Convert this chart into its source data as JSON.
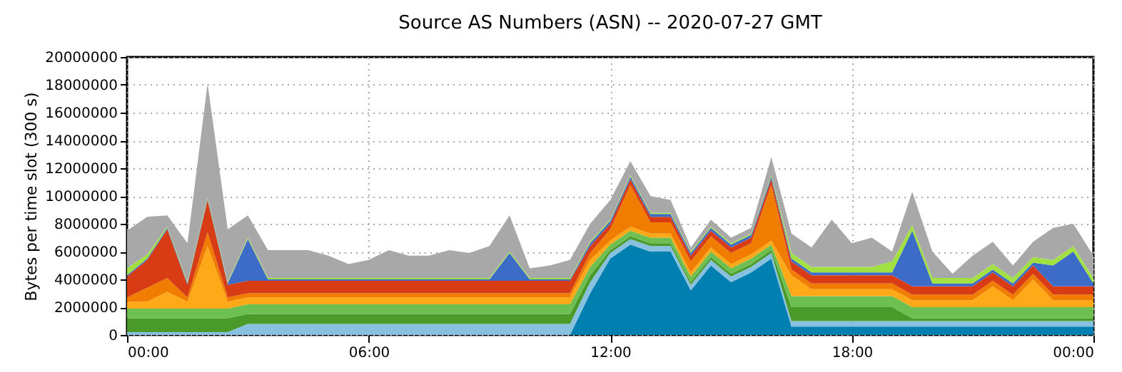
{
  "chart_data": {
    "type": "area",
    "stacked": true,
    "title": "Source AS Numbers (ASN) -- 2020-07-27 GMT",
    "ylabel": "Bytes per time slot (300 s)",
    "x": [
      0,
      0.5,
      1,
      1.5,
      2,
      2.5,
      3,
      3.5,
      4,
      4.5,
      5,
      5.5,
      6,
      6.5,
      7,
      7.5,
      8,
      8.5,
      9,
      9.5,
      10,
      10.5,
      11,
      11.5,
      12,
      12.5,
      13,
      13.5,
      14,
      14.5,
      15,
      15.5,
      16,
      16.5,
      17,
      17.5,
      18,
      18.5,
      19,
      19.5,
      20,
      20.5,
      21,
      21.5,
      22,
      22.5,
      23,
      23.5,
      24
    ],
    "xlim": [
      0,
      24
    ],
    "xticks": [
      {
        "value": 0,
        "label": "00:00"
      },
      {
        "value": 6,
        "label": "06:00"
      },
      {
        "value": 12,
        "label": "12:00"
      },
      {
        "value": 18,
        "label": "18:00"
      },
      {
        "value": 24,
        "label": "00:00"
      }
    ],
    "ylim": [
      0,
      20000000
    ],
    "yticks": [
      0,
      2000000,
      4000000,
      6000000,
      8000000,
      10000000,
      12000000,
      14000000,
      16000000,
      18000000,
      20000000
    ],
    "grid": true,
    "series": [
      {
        "color": "#0080b0",
        "values": [
          0,
          0,
          0,
          0,
          0,
          0,
          0,
          0,
          0,
          0,
          0,
          0,
          0,
          0,
          0,
          0,
          0,
          0,
          0,
          0,
          0,
          0,
          0,
          3000000,
          5500000,
          6500000,
          6000000,
          6000000,
          3200000,
          5000000,
          3800000,
          4500000,
          5500000,
          600000,
          600000,
          600000,
          600000,
          600000,
          600000,
          600000,
          600000,
          600000,
          600000,
          600000,
          600000,
          600000,
          600000,
          600000,
          600000
        ]
      },
      {
        "color": "#88c0e0",
        "values": [
          200000,
          200000,
          200000,
          200000,
          200000,
          200000,
          800000,
          800000,
          800000,
          800000,
          800000,
          800000,
          800000,
          800000,
          800000,
          800000,
          800000,
          800000,
          800000,
          800000,
          800000,
          800000,
          800000,
          800000,
          400000,
          400000,
          400000,
          400000,
          400000,
          400000,
          400000,
          400000,
          400000,
          400000,
          400000,
          400000,
          400000,
          400000,
          400000,
          400000,
          400000,
          400000,
          400000,
          400000,
          400000,
          400000,
          400000,
          400000,
          400000
        ]
      },
      {
        "color": "#4a9a2a",
        "values": [
          1000000,
          1000000,
          1000000,
          1000000,
          1000000,
          1000000,
          700000,
          700000,
          700000,
          700000,
          700000,
          700000,
          700000,
          700000,
          700000,
          700000,
          700000,
          700000,
          700000,
          700000,
          700000,
          700000,
          700000,
          500000,
          200000,
          200000,
          200000,
          200000,
          200000,
          200000,
          200000,
          200000,
          200000,
          1000000,
          1000000,
          1000000,
          1000000,
          1000000,
          1000000,
          200000,
          200000,
          200000,
          200000,
          200000,
          200000,
          200000,
          200000,
          200000,
          200000
        ]
      },
      {
        "color": "#6cbf50",
        "values": [
          700000,
          700000,
          700000,
          700000,
          700000,
          700000,
          700000,
          700000,
          700000,
          700000,
          700000,
          700000,
          700000,
          700000,
          700000,
          700000,
          700000,
          700000,
          700000,
          700000,
          700000,
          700000,
          700000,
          600000,
          400000,
          400000,
          400000,
          400000,
          400000,
          400000,
          400000,
          400000,
          400000,
          800000,
          800000,
          800000,
          800000,
          800000,
          800000,
          800000,
          800000,
          800000,
          800000,
          800000,
          800000,
          800000,
          800000,
          800000,
          800000
        ]
      },
      {
        "color": "#ffa818",
        "values": [
          500000,
          500000,
          1200000,
          500000,
          4500000,
          500000,
          500000,
          500000,
          500000,
          500000,
          500000,
          500000,
          500000,
          500000,
          500000,
          500000,
          500000,
          500000,
          500000,
          500000,
          500000,
          500000,
          500000,
          500000,
          300000,
          300000,
          300000,
          300000,
          300000,
          300000,
          300000,
          300000,
          300000,
          1500000,
          500000,
          500000,
          500000,
          500000,
          500000,
          500000,
          500000,
          500000,
          500000,
          1500000,
          500000,
          2000000,
          500000,
          500000,
          500000
        ]
      },
      {
        "color": "#f07c00",
        "values": [
          300000,
          1000000,
          1000000,
          300000,
          1000000,
          300000,
          300000,
          300000,
          300000,
          300000,
          300000,
          300000,
          300000,
          300000,
          300000,
          300000,
          300000,
          300000,
          300000,
          300000,
          300000,
          300000,
          300000,
          500000,
          800000,
          3000000,
          800000,
          800000,
          800000,
          800000,
          800000,
          800000,
          4000000,
          400000,
          400000,
          400000,
          400000,
          400000,
          400000,
          400000,
          400000,
          400000,
          400000,
          400000,
          400000,
          400000,
          400000,
          400000,
          400000
        ]
      },
      {
        "color": "#d83c14",
        "values": [
          1500000,
          2000000,
          3500000,
          900000,
          2300000,
          900000,
          900000,
          900000,
          900000,
          900000,
          900000,
          900000,
          900000,
          900000,
          900000,
          900000,
          900000,
          900000,
          900000,
          900000,
          900000,
          900000,
          900000,
          500000,
          400000,
          400000,
          400000,
          400000,
          400000,
          400000,
          400000,
          400000,
          400000,
          600000,
          600000,
          600000,
          600000,
          600000,
          600000,
          600000,
          600000,
          600000,
          600000,
          600000,
          600000,
          600000,
          600000,
          600000,
          600000
        ]
      },
      {
        "color": "#3c6cc8",
        "values": [
          100000,
          100000,
          100000,
          100000,
          100000,
          100000,
          3000000,
          100000,
          100000,
          100000,
          100000,
          100000,
          100000,
          100000,
          100000,
          100000,
          100000,
          100000,
          100000,
          2000000,
          100000,
          100000,
          100000,
          200000,
          200000,
          200000,
          200000,
          200000,
          200000,
          200000,
          200000,
          200000,
          200000,
          200000,
          200000,
          200000,
          200000,
          200000,
          200000,
          4000000,
          200000,
          200000,
          200000,
          200000,
          200000,
          200000,
          1500000,
          2500000,
          200000
        ]
      },
      {
        "color": "#a0e040",
        "values": [
          500000,
          300000,
          100000,
          100000,
          100000,
          100000,
          100000,
          100000,
          100000,
          100000,
          100000,
          100000,
          100000,
          100000,
          100000,
          100000,
          100000,
          100000,
          100000,
          100000,
          100000,
          100000,
          100000,
          100000,
          100000,
          100000,
          100000,
          100000,
          100000,
          100000,
          100000,
          100000,
          100000,
          400000,
          400000,
          400000,
          400000,
          400000,
          800000,
          400000,
          400000,
          400000,
          400000,
          400000,
          400000,
          400000,
          400000,
          400000,
          400000
        ]
      },
      {
        "color": "#a8a8a8",
        "values": [
          2700000,
          2700000,
          800000,
          2800000,
          8200000,
          3800000,
          1600000,
          2000000,
          2000000,
          2000000,
          1600000,
          1000000,
          1300000,
          2000000,
          1600000,
          1600000,
          2000000,
          1800000,
          2300000,
          2600000,
          700000,
          900000,
          1300000,
          1300000,
          1400000,
          1000000,
          1200000,
          900000,
          300000,
          500000,
          400000,
          400000,
          1300000,
          1400000,
          1400000,
          3400000,
          1700000,
          2100000,
          700000,
          2400000,
          1900000,
          300000,
          1600000,
          1600000,
          900000,
          1100000,
          2300000,
          1600000,
          1600000
        ]
      }
    ]
  }
}
